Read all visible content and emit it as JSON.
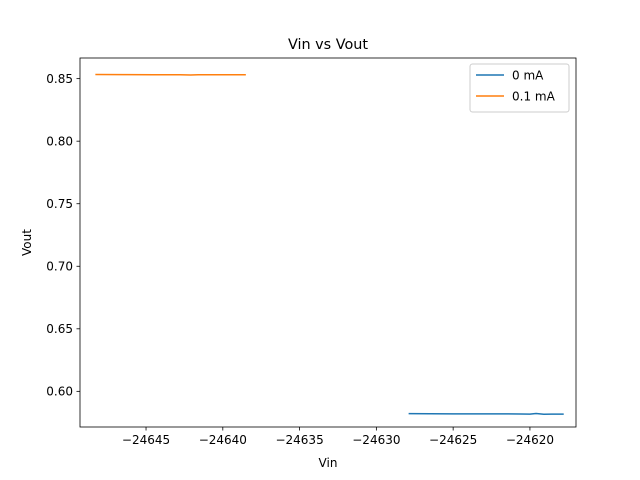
{
  "chart_data": {
    "type": "line",
    "title": "Vin vs Vout",
    "xlabel": "Vin",
    "ylabel": "Vout",
    "xlim": [
      -24649.3,
      -24617.0
    ],
    "ylim": [
      0.5715,
      0.8665
    ],
    "xticks": [
      -24645,
      -24640,
      -24635,
      -24630,
      -24625,
      -24620
    ],
    "xtick_labels": [
      "−24645",
      "−24640",
      "−24635",
      "−24630",
      "−24625",
      "−24620"
    ],
    "yticks": [
      0.6,
      0.65,
      0.7,
      0.75,
      0.8,
      0.85
    ],
    "ytick_labels": [
      "0.60",
      "0.65",
      "0.70",
      "0.75",
      "0.80",
      "0.85"
    ],
    "grid": false,
    "legend_position": "top-right",
    "series": [
      {
        "name": "0 mA",
        "color": "#1f77b4",
        "x": [
          -24627.9,
          -24626.5,
          -24625.0,
          -24623.5,
          -24622.0,
          -24620.6,
          -24620.0,
          -24619.6,
          -24619.1,
          -24618.6,
          -24617.8
        ],
        "y": [
          0.5822,
          0.5821,
          0.582,
          0.582,
          0.582,
          0.5819,
          0.5818,
          0.5823,
          0.5817,
          0.5818,
          0.5818
        ]
      },
      {
        "name": "0.1 mA",
        "color": "#ff7f0e",
        "x": [
          -24648.3,
          -24646.5,
          -24644.5,
          -24642.8,
          -24642.1,
          -24641.6,
          -24640.5,
          -24639.5,
          -24638.5
        ],
        "y": [
          0.8533,
          0.8532,
          0.8531,
          0.8531,
          0.8529,
          0.8531,
          0.8531,
          0.8531,
          0.8531
        ]
      }
    ]
  }
}
